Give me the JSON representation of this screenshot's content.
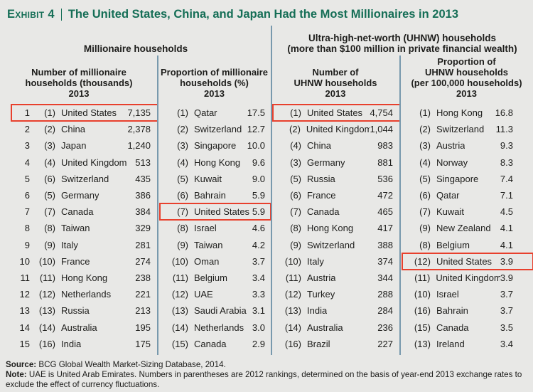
{
  "colors": {
    "background": "#e8e8e6",
    "title_green": "#156e56",
    "divider_blue": "#7899ad",
    "highlight_red": "#e8402d",
    "text": "#1d1d1b"
  },
  "header": {
    "exhibit_label": "Exhibit 4",
    "title": "The United States, China, and Japan Had the Most Millionaires in 2013"
  },
  "footer": {
    "source_label": "Source:",
    "source_text": " BCG Global Wealth Market-Sizing Database, 2014.",
    "note_label": "Note:",
    "note_text": " UAE is United Arab Emirates. Numbers in parentheses are 2012 rankings, determined on the basis of year-end 2013 exchange rates to exclude the effect of currency fluctuations."
  },
  "chart_data": {
    "type": "table",
    "title": "The United States, China, and Japan Had the Most Millionaires in 2013",
    "sections": [
      {
        "title_lines": [
          "Millionaire households"
        ]
      },
      {
        "title_lines": [
          "Ultra-high-net-worth (UHNW) households",
          "(more than $100 million in private financial wealth)"
        ]
      }
    ],
    "columns": [
      {
        "header_lines": [
          "Number of millionaire",
          "households (thousands)",
          "2013"
        ],
        "show_rank": true,
        "rows": [
          {
            "rank": "1",
            "prev_rank": "(1)",
            "country": "United States",
            "value": "7,135",
            "highlight": true
          },
          {
            "rank": "2",
            "prev_rank": "(2)",
            "country": "China",
            "value": "2,378"
          },
          {
            "rank": "3",
            "prev_rank": "(3)",
            "country": "Japan",
            "value": "1,240"
          },
          {
            "rank": "4",
            "prev_rank": "(4)",
            "country": "United Kingdom",
            "value": "513"
          },
          {
            "rank": "5",
            "prev_rank": "(6)",
            "country": "Switzerland",
            "value": "435"
          },
          {
            "rank": "6",
            "prev_rank": "(5)",
            "country": "Germany",
            "value": "386"
          },
          {
            "rank": "7",
            "prev_rank": "(7)",
            "country": "Canada",
            "value": "384"
          },
          {
            "rank": "8",
            "prev_rank": "(8)",
            "country": "Taiwan",
            "value": "329"
          },
          {
            "rank": "9",
            "prev_rank": "(9)",
            "country": "Italy",
            "value": "281"
          },
          {
            "rank": "10",
            "prev_rank": "(10)",
            "country": "France",
            "value": "274"
          },
          {
            "rank": "11",
            "prev_rank": "(11)",
            "country": "Hong Kong",
            "value": "238"
          },
          {
            "rank": "12",
            "prev_rank": "(12)",
            "country": "Netherlands",
            "value": "221"
          },
          {
            "rank": "13",
            "prev_rank": "(13)",
            "country": "Russia",
            "value": "213"
          },
          {
            "rank": "14",
            "prev_rank": "(14)",
            "country": "Australia",
            "value": "195"
          },
          {
            "rank": "15",
            "prev_rank": "(16)",
            "country": "India",
            "value": "175"
          }
        ]
      },
      {
        "header_lines": [
          "Proportion of millionaire",
          "households (%)",
          "2013"
        ],
        "show_rank": false,
        "rows": [
          {
            "prev_rank": "(1)",
            "country": "Qatar",
            "value": "17.5"
          },
          {
            "prev_rank": "(2)",
            "country": "Switzerland",
            "value": "12.7"
          },
          {
            "prev_rank": "(3)",
            "country": "Singapore",
            "value": "10.0"
          },
          {
            "prev_rank": "(4)",
            "country": "Hong Kong",
            "value": "9.6"
          },
          {
            "prev_rank": "(5)",
            "country": "Kuwait",
            "value": "9.0"
          },
          {
            "prev_rank": "(6)",
            "country": "Bahrain",
            "value": "5.9"
          },
          {
            "prev_rank": "(7)",
            "country": "United States",
            "value": "5.9",
            "highlight": true
          },
          {
            "prev_rank": "(8)",
            "country": "Israel",
            "value": "4.6"
          },
          {
            "prev_rank": "(9)",
            "country": "Taiwan",
            "value": "4.2"
          },
          {
            "prev_rank": "(10)",
            "country": "Oman",
            "value": "3.7"
          },
          {
            "prev_rank": "(11)",
            "country": "Belgium",
            "value": "3.4"
          },
          {
            "prev_rank": "(12)",
            "country": "UAE",
            "value": "3.3"
          },
          {
            "prev_rank": "(13)",
            "country": "Saudi Arabia",
            "value": "3.1"
          },
          {
            "prev_rank": "(14)",
            "country": "Netherlands",
            "value": "3.0"
          },
          {
            "prev_rank": "(15)",
            "country": "Canada",
            "value": "2.9"
          }
        ]
      },
      {
        "header_lines": [
          "Number of",
          "UHNW households",
          "2013"
        ],
        "show_rank": false,
        "rows": [
          {
            "prev_rank": "(1)",
            "country": "United States",
            "value": "4,754",
            "highlight": true
          },
          {
            "prev_rank": "(2)",
            "country": "United Kingdom",
            "value": "1,044"
          },
          {
            "prev_rank": "(4)",
            "country": "China",
            "value": "983"
          },
          {
            "prev_rank": "(3)",
            "country": "Germany",
            "value": "881"
          },
          {
            "prev_rank": "(5)",
            "country": "Russia",
            "value": "536"
          },
          {
            "prev_rank": "(6)",
            "country": "France",
            "value": "472"
          },
          {
            "prev_rank": "(7)",
            "country": "Canada",
            "value": "465"
          },
          {
            "prev_rank": "(8)",
            "country": "Hong Kong",
            "value": "417"
          },
          {
            "prev_rank": "(9)",
            "country": "Switzerland",
            "value": "388"
          },
          {
            "prev_rank": "(10)",
            "country": "Italy",
            "value": "374"
          },
          {
            "prev_rank": "(11)",
            "country": "Austria",
            "value": "344"
          },
          {
            "prev_rank": "(12)",
            "country": "Turkey",
            "value": "288"
          },
          {
            "prev_rank": "(13)",
            "country": "India",
            "value": "284"
          },
          {
            "prev_rank": "(14)",
            "country": "Australia",
            "value": "236"
          },
          {
            "prev_rank": "(16)",
            "country": "Brazil",
            "value": "227"
          }
        ]
      },
      {
        "header_lines": [
          "Proportion of",
          "UHNW households",
          "(per 100,000 households)",
          "2013"
        ],
        "show_rank": false,
        "rows": [
          {
            "prev_rank": "(1)",
            "country": "Hong Kong",
            "value": "16.8"
          },
          {
            "prev_rank": "(2)",
            "country": "Switzerland",
            "value": "11.3"
          },
          {
            "prev_rank": "(3)",
            "country": "Austria",
            "value": "9.3"
          },
          {
            "prev_rank": "(4)",
            "country": "Norway",
            "value": "8.3"
          },
          {
            "prev_rank": "(5)",
            "country": "Singapore",
            "value": "7.4"
          },
          {
            "prev_rank": "(6)",
            "country": "Qatar",
            "value": "7.1"
          },
          {
            "prev_rank": "(7)",
            "country": "Kuwait",
            "value": "4.5"
          },
          {
            "prev_rank": "(9)",
            "country": "New Zealand",
            "value": "4.1"
          },
          {
            "prev_rank": "(8)",
            "country": "Belgium",
            "value": "4.1"
          },
          {
            "prev_rank": "(12)",
            "country": "United States",
            "value": "3.9",
            "highlight": true
          },
          {
            "prev_rank": "(11)",
            "country": "United Kingdom",
            "value": "3.9"
          },
          {
            "prev_rank": "(10)",
            "country": "Israel",
            "value": "3.7"
          },
          {
            "prev_rank": "(16)",
            "country": "Bahrain",
            "value": "3.7"
          },
          {
            "prev_rank": "(15)",
            "country": "Canada",
            "value": "3.5"
          },
          {
            "prev_rank": "(13)",
            "country": "Ireland",
            "value": "3.4"
          }
        ]
      }
    ]
  }
}
